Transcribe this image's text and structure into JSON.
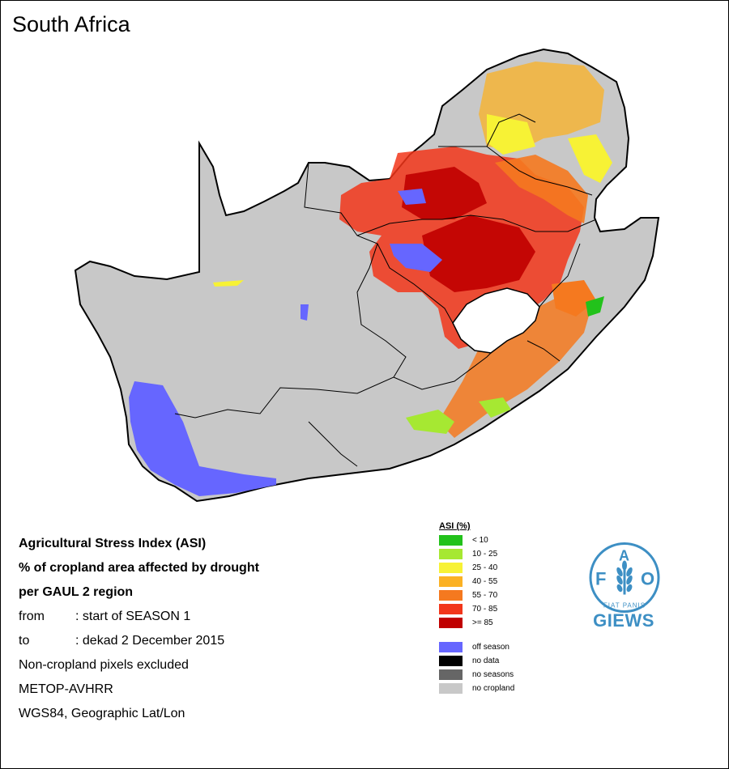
{
  "title": "South Africa",
  "info": {
    "line1": "Agricultural Stress Index (ASI)",
    "line2": "% of cropland area affected by drought",
    "line3": "per GAUL 2 region",
    "from_key": "from",
    "from_val": ": start of SEASON 1",
    "to_key": "to",
    "to_val": ": dekad 2 December 2015",
    "note1": "Non-cropland pixels excluded",
    "note2": "METOP-AVHRR",
    "note3": "WGS84, Geographic Lat/Lon"
  },
  "legend": {
    "title": "ASI (%)",
    "classes": [
      {
        "label": "< 10",
        "color": "#22c21b"
      },
      {
        "label": "10 - 25",
        "color": "#a6e832"
      },
      {
        "label": "25 - 40",
        "color": "#f7f235"
      },
      {
        "label": "40 - 55",
        "color": "#fbb124"
      },
      {
        "label": "55 - 70",
        "color": "#f5791f"
      },
      {
        "label": "70 - 85",
        "color": "#f2361a"
      },
      {
        "label": ">= 85",
        "color": "#c00000"
      }
    ],
    "other": [
      {
        "label": "off season",
        "color": "#6666ff"
      },
      {
        "label": "no data",
        "color": "#000000"
      },
      {
        "label": "no seasons",
        "color": "#666666"
      },
      {
        "label": "no cropland",
        "color": "#c8c8c8"
      }
    ]
  },
  "logo": {
    "letters": [
      "F",
      "A",
      "O"
    ],
    "motto": "FIAT PANIS",
    "program": "GIEWS",
    "color": "#3d8fc4"
  },
  "map": {
    "land_color": "#c8c8c8",
    "lesotho_color": "#ffffff"
  }
}
